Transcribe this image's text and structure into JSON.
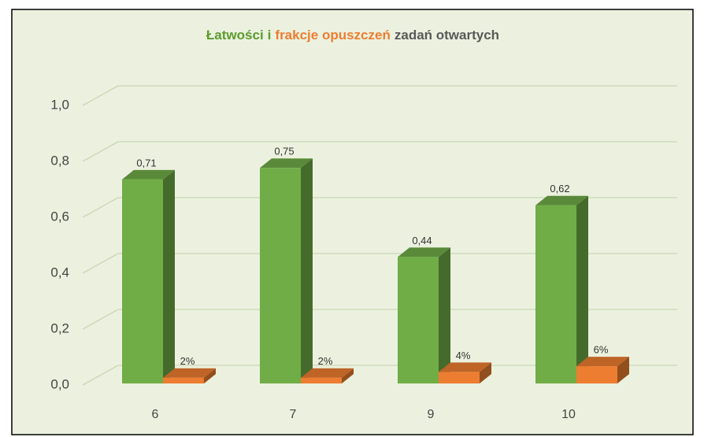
{
  "chart_data": {
    "type": "bar3d",
    "title_parts": [
      {
        "text": "Łatwości",
        "color": "#5b9b2f"
      },
      {
        "text": "i",
        "color": "#5b9b2f"
      },
      {
        "text": "frakcje opuszczeń",
        "color": "#ed7d31"
      },
      {
        "text": "zadań  otwartych",
        "color": "#595959"
      }
    ],
    "categories": [
      "6",
      "7",
      "9",
      "10"
    ],
    "series": [
      {
        "color": "#70ad47",
        "values": [
          0.71,
          0.75,
          0.44,
          0.62
        ],
        "value_labels": [
          "0,71",
          "0,75",
          "0,44",
          "0,62"
        ]
      },
      {
        "color": "#ed7d31",
        "values": [
          0.02,
          0.02,
          0.04,
          0.06
        ],
        "value_labels": [
          "2%",
          "2%",
          "4%",
          "6%"
        ]
      }
    ],
    "ylim": [
      0,
      1
    ],
    "yticks": [
      {
        "value": 0,
        "label": "0,0"
      },
      {
        "value": 0.2,
        "label": "0,2"
      },
      {
        "value": 0.4,
        "label": "0,4"
      },
      {
        "value": 0.6,
        "label": "0,6"
      },
      {
        "value": 0.8,
        "label": "0,8"
      },
      {
        "value": 1,
        "label": "1,0"
      }
    ],
    "grid": true
  }
}
